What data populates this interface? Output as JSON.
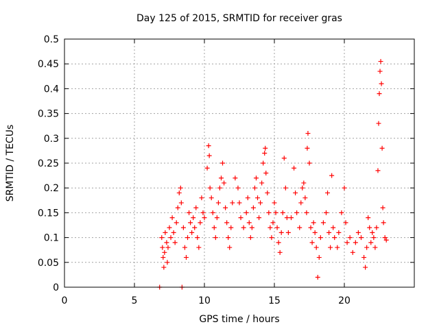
{
  "chart_data": {
    "type": "scatter",
    "title": "Day 125 of 2015, SRMTID for receiver gras",
    "xlabel": "GPS time / hours",
    "ylabel": "SRMTID / TECUs",
    "xlim": [
      0,
      25
    ],
    "ylim": [
      0,
      0.5
    ],
    "xticks": [
      0,
      5,
      10,
      15,
      20
    ],
    "xtick_labels": [
      "0",
      "5",
      "10",
      "15",
      "20"
    ],
    "yticks": [
      0,
      0.05,
      0.1,
      0.15,
      0.2,
      0.25,
      0.3,
      0.35,
      0.4,
      0.45,
      0.5
    ],
    "ytick_labels": [
      "0",
      "0.05",
      "0.1",
      "0.15",
      "0.2",
      "0.25",
      "0.3",
      "0.35",
      "0.4",
      "0.45",
      "0.5"
    ],
    "grid": true,
    "marker": "+",
    "color": "#ff0000",
    "series": [
      {
        "name": "SRMTID",
        "points": [
          [
            6.8,
            0.0
          ],
          [
            8.4,
            0.0
          ],
          [
            6.95,
            0.1
          ],
          [
            7.0,
            0.08
          ],
          [
            7.05,
            0.06
          ],
          [
            7.1,
            0.04
          ],
          [
            7.15,
            0.07
          ],
          [
            7.2,
            0.11
          ],
          [
            7.3,
            0.09
          ],
          [
            7.35,
            0.05
          ],
          [
            7.4,
            0.08
          ],
          [
            7.5,
            0.12
          ],
          [
            7.6,
            0.1
          ],
          [
            7.7,
            0.14
          ],
          [
            7.8,
            0.11
          ],
          [
            7.9,
            0.09
          ],
          [
            8.0,
            0.13
          ],
          [
            8.1,
            0.16
          ],
          [
            8.2,
            0.19
          ],
          [
            8.3,
            0.2
          ],
          [
            8.35,
            0.17
          ],
          [
            8.5,
            0.12
          ],
          [
            8.6,
            0.08
          ],
          [
            8.7,
            0.06
          ],
          [
            8.8,
            0.1
          ],
          [
            8.9,
            0.15
          ],
          [
            9.0,
            0.13
          ],
          [
            9.1,
            0.11
          ],
          [
            9.2,
            0.14
          ],
          [
            9.3,
            0.12
          ],
          [
            9.4,
            0.16
          ],
          [
            9.5,
            0.1
          ],
          [
            9.6,
            0.08
          ],
          [
            9.7,
            0.13
          ],
          [
            9.8,
            0.18
          ],
          [
            9.9,
            0.15
          ],
          [
            10.0,
            0.14
          ],
          [
            10.2,
            0.24
          ],
          [
            10.3,
            0.285
          ],
          [
            10.35,
            0.265
          ],
          [
            10.4,
            0.2
          ],
          [
            10.5,
            0.18
          ],
          [
            10.6,
            0.15
          ],
          [
            10.7,
            0.12
          ],
          [
            10.8,
            0.1
          ],
          [
            10.9,
            0.14
          ],
          [
            11.0,
            0.17
          ],
          [
            11.1,
            0.2
          ],
          [
            11.2,
            0.22
          ],
          [
            11.3,
            0.25
          ],
          [
            11.4,
            0.21
          ],
          [
            11.5,
            0.16
          ],
          [
            11.6,
            0.13
          ],
          [
            11.7,
            0.1
          ],
          [
            11.8,
            0.08
          ],
          [
            11.9,
            0.12
          ],
          [
            12.0,
            0.17
          ],
          [
            12.2,
            0.22
          ],
          [
            12.4,
            0.2
          ],
          [
            12.5,
            0.17
          ],
          [
            12.6,
            0.14
          ],
          [
            12.8,
            0.12
          ],
          [
            13.0,
            0.15
          ],
          [
            13.1,
            0.18
          ],
          [
            13.2,
            0.13
          ],
          [
            13.3,
            0.1
          ],
          [
            13.4,
            0.12
          ],
          [
            13.5,
            0.16
          ],
          [
            13.6,
            0.2
          ],
          [
            13.7,
            0.22
          ],
          [
            13.8,
            0.18
          ],
          [
            13.9,
            0.14
          ],
          [
            14.0,
            0.17
          ],
          [
            14.1,
            0.21
          ],
          [
            14.2,
            0.25
          ],
          [
            14.3,
            0.27
          ],
          [
            14.35,
            0.28
          ],
          [
            14.4,
            0.23
          ],
          [
            14.5,
            0.19
          ],
          [
            14.6,
            0.15
          ],
          [
            14.7,
            0.12
          ],
          [
            14.8,
            0.1
          ],
          [
            14.9,
            0.13
          ],
          [
            15.0,
            0.17
          ],
          [
            15.1,
            0.15
          ],
          [
            15.2,
            0.12
          ],
          [
            15.3,
            0.09
          ],
          [
            15.4,
            0.07
          ],
          [
            15.5,
            0.11
          ],
          [
            15.6,
            0.15
          ],
          [
            15.7,
            0.26
          ],
          [
            15.8,
            0.2
          ],
          [
            15.9,
            0.14
          ],
          [
            16.0,
            0.11
          ],
          [
            16.2,
            0.14
          ],
          [
            16.4,
            0.24
          ],
          [
            16.5,
            0.19
          ],
          [
            16.6,
            0.15
          ],
          [
            16.8,
            0.12
          ],
          [
            16.9,
            0.17
          ],
          [
            17.0,
            0.2
          ],
          [
            17.1,
            0.21
          ],
          [
            17.2,
            0.18
          ],
          [
            17.3,
            0.15
          ],
          [
            17.35,
            0.28
          ],
          [
            17.4,
            0.31
          ],
          [
            17.5,
            0.25
          ],
          [
            17.6,
            0.12
          ],
          [
            17.7,
            0.09
          ],
          [
            17.8,
            0.13
          ],
          [
            17.9,
            0.11
          ],
          [
            18.0,
            0.08
          ],
          [
            18.1,
            0.02
          ],
          [
            18.2,
            0.06
          ],
          [
            18.3,
            0.1
          ],
          [
            18.5,
            0.13
          ],
          [
            18.7,
            0.15
          ],
          [
            18.8,
            0.19
          ],
          [
            18.9,
            0.11
          ],
          [
            19.0,
            0.08
          ],
          [
            19.1,
            0.225
          ],
          [
            19.2,
            0.12
          ],
          [
            19.3,
            0.1
          ],
          [
            19.5,
            0.08
          ],
          [
            19.6,
            0.11
          ],
          [
            19.8,
            0.15
          ],
          [
            20.0,
            0.2
          ],
          [
            20.1,
            0.13
          ],
          [
            20.2,
            0.09
          ],
          [
            20.4,
            0.1
          ],
          [
            20.6,
            0.07
          ],
          [
            20.8,
            0.09
          ],
          [
            21.0,
            0.11
          ],
          [
            21.2,
            0.1
          ],
          [
            21.4,
            0.06
          ],
          [
            21.5,
            0.04
          ],
          [
            21.6,
            0.08
          ],
          [
            21.7,
            0.14
          ],
          [
            21.8,
            0.12
          ],
          [
            21.9,
            0.09
          ],
          [
            22.0,
            0.11
          ],
          [
            22.1,
            0.1
          ],
          [
            22.2,
            0.08
          ],
          [
            22.3,
            0.12
          ],
          [
            22.4,
            0.235
          ],
          [
            22.45,
            0.33
          ],
          [
            22.5,
            0.39
          ],
          [
            22.55,
            0.435
          ],
          [
            22.6,
            0.455
          ],
          [
            22.65,
            0.41
          ],
          [
            22.7,
            0.28
          ],
          [
            22.75,
            0.16
          ],
          [
            22.8,
            0.13
          ],
          [
            22.9,
            0.1
          ],
          [
            23.0,
            0.095
          ]
        ]
      }
    ]
  }
}
